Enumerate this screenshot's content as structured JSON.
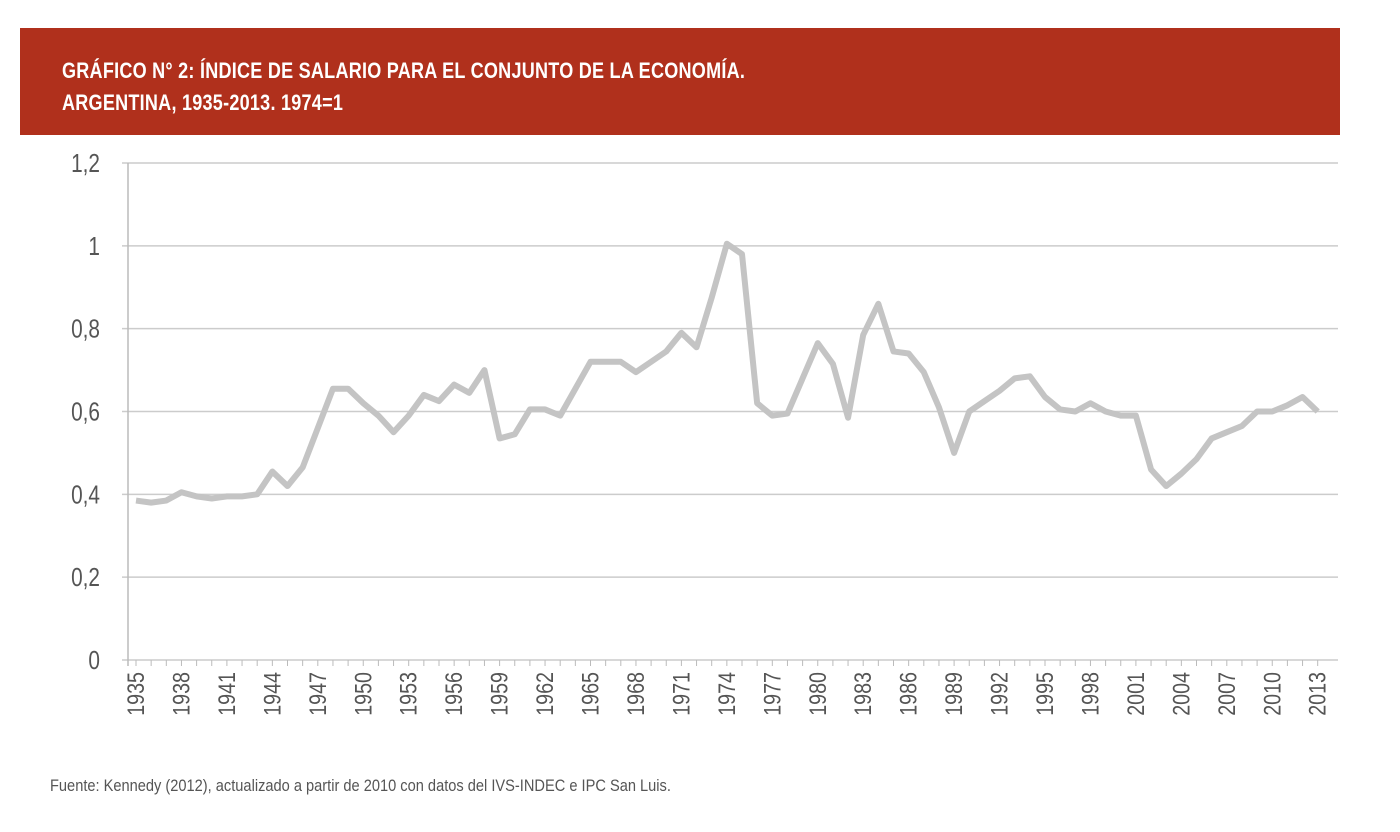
{
  "header": {
    "line1": "GRÁFICO N° 2: ÍNDICE DE SALARIO PARA EL CONJUNTO DE LA ECONOMÍA.",
    "line2": "ARGENTINA, 1935-2013. 1974=1"
  },
  "source": "Fuente: Kennedy (2012), actualizado a partir de 2010 con datos del IVS-INDEC e IPC San Luis.",
  "colors": {
    "header": "#b0301c",
    "line": "#c4c4c4",
    "grid": "#cccccc"
  },
  "chart_data": {
    "type": "line",
    "title": "GRÁFICO N° 2: ÍNDICE DE SALARIO PARA EL CONJUNTO DE LA ECONOMÍA. ARGENTINA, 1935-2013. 1974=1",
    "xlabel": "",
    "ylabel": "",
    "ylim": [
      0,
      1.2
    ],
    "yticks": [
      "0",
      "0,2",
      "0,4",
      "0,6",
      "0,8",
      "1",
      "1,2"
    ],
    "xticks": [
      "1935",
      "1938",
      "1941",
      "1944",
      "1947",
      "1950",
      "1953",
      "1956",
      "1959",
      "1962",
      "1965",
      "1968",
      "1971",
      "1974",
      "1977",
      "1980",
      "1983",
      "1986",
      "1989",
      "1992",
      "1995",
      "1998",
      "2001",
      "2004",
      "2007",
      "2010",
      "2013"
    ],
    "grid": true,
    "x_start": 1935,
    "series": [
      {
        "name": "Índice de salario",
        "values": [
          0.385,
          0.38,
          0.385,
          0.405,
          0.395,
          0.39,
          0.395,
          0.395,
          0.4,
          0.455,
          0.42,
          0.465,
          0.56,
          0.655,
          0.655,
          0.62,
          0.59,
          0.55,
          0.59,
          0.64,
          0.625,
          0.665,
          0.645,
          0.7,
          0.535,
          0.545,
          0.605,
          0.605,
          0.59,
          0.655,
          0.72,
          0.72,
          0.72,
          0.695,
          0.72,
          0.745,
          0.79,
          0.755,
          0.875,
          1.005,
          0.98,
          0.62,
          0.59,
          0.595,
          0.68,
          0.765,
          0.715,
          0.585,
          0.785,
          0.86,
          0.745,
          0.74,
          0.695,
          0.61,
          0.5,
          0.6,
          0.625,
          0.65,
          0.68,
          0.685,
          0.635,
          0.605,
          0.6,
          0.62,
          0.6,
          0.59,
          0.59,
          0.46,
          0.42,
          0.45,
          0.485,
          0.535,
          0.55,
          0.565,
          0.6,
          0.6,
          0.615,
          0.635,
          0.6
        ]
      }
    ]
  }
}
